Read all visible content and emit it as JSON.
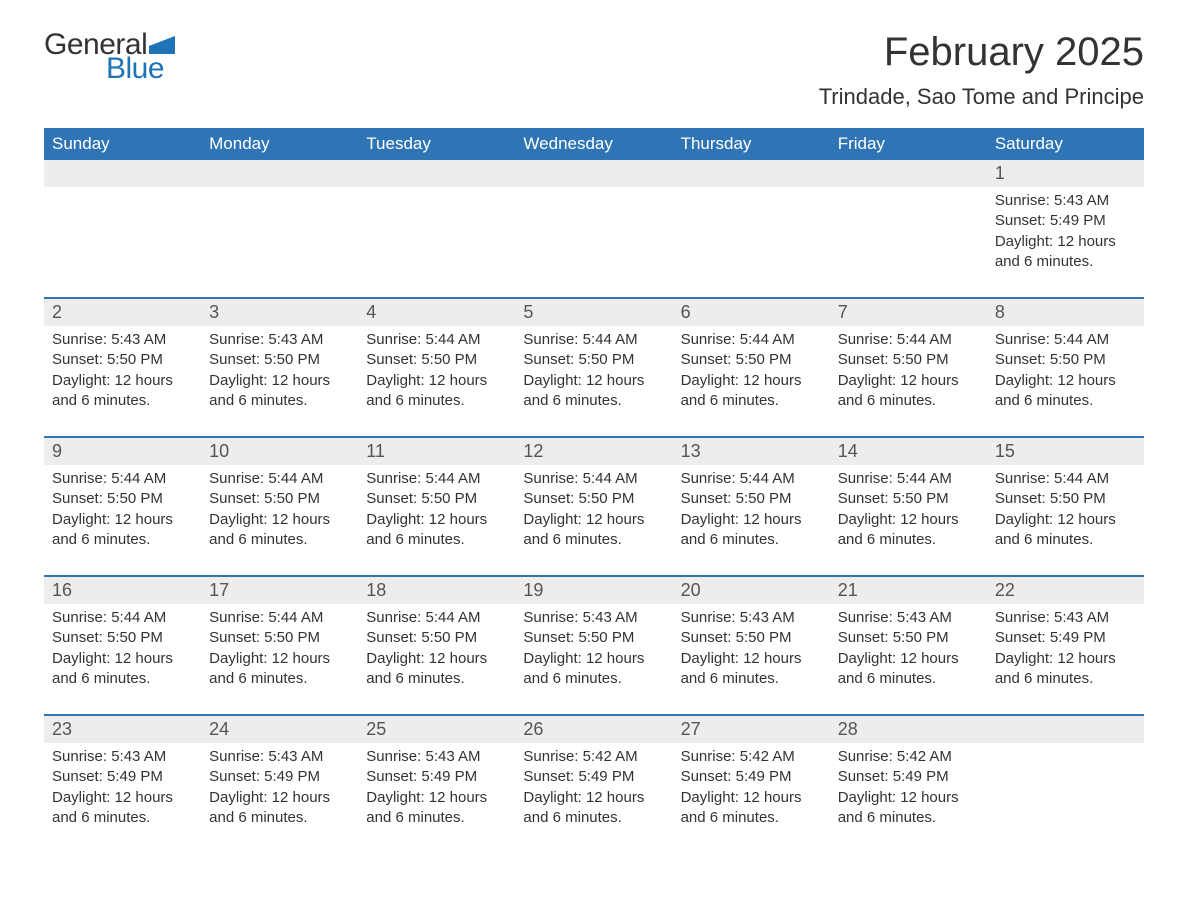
{
  "logo": {
    "text1": "General",
    "text2": "Blue",
    "flag_color": "#1f73b7"
  },
  "title": "February 2025",
  "location": "Trindade, Sao Tome and Principe",
  "colors": {
    "header_bg": "#2f74b5",
    "header_text": "#ffffff",
    "daynum_bg": "#ededed",
    "border": "#2f74b5",
    "body_text": "#333333"
  },
  "day_headers": [
    "Sunday",
    "Monday",
    "Tuesday",
    "Wednesday",
    "Thursday",
    "Friday",
    "Saturday"
  ],
  "weeks": [
    [
      {
        "n": "",
        "sr": "",
        "ss": "",
        "dl": ""
      },
      {
        "n": "",
        "sr": "",
        "ss": "",
        "dl": ""
      },
      {
        "n": "",
        "sr": "",
        "ss": "",
        "dl": ""
      },
      {
        "n": "",
        "sr": "",
        "ss": "",
        "dl": ""
      },
      {
        "n": "",
        "sr": "",
        "ss": "",
        "dl": ""
      },
      {
        "n": "",
        "sr": "",
        "ss": "",
        "dl": ""
      },
      {
        "n": "1",
        "sr": "Sunrise: 5:43 AM",
        "ss": "Sunset: 5:49 PM",
        "dl": "Daylight: 12 hours and 6 minutes."
      }
    ],
    [
      {
        "n": "2",
        "sr": "Sunrise: 5:43 AM",
        "ss": "Sunset: 5:50 PM",
        "dl": "Daylight: 12 hours and 6 minutes."
      },
      {
        "n": "3",
        "sr": "Sunrise: 5:43 AM",
        "ss": "Sunset: 5:50 PM",
        "dl": "Daylight: 12 hours and 6 minutes."
      },
      {
        "n": "4",
        "sr": "Sunrise: 5:44 AM",
        "ss": "Sunset: 5:50 PM",
        "dl": "Daylight: 12 hours and 6 minutes."
      },
      {
        "n": "5",
        "sr": "Sunrise: 5:44 AM",
        "ss": "Sunset: 5:50 PM",
        "dl": "Daylight: 12 hours and 6 minutes."
      },
      {
        "n": "6",
        "sr": "Sunrise: 5:44 AM",
        "ss": "Sunset: 5:50 PM",
        "dl": "Daylight: 12 hours and 6 minutes."
      },
      {
        "n": "7",
        "sr": "Sunrise: 5:44 AM",
        "ss": "Sunset: 5:50 PM",
        "dl": "Daylight: 12 hours and 6 minutes."
      },
      {
        "n": "8",
        "sr": "Sunrise: 5:44 AM",
        "ss": "Sunset: 5:50 PM",
        "dl": "Daylight: 12 hours and 6 minutes."
      }
    ],
    [
      {
        "n": "9",
        "sr": "Sunrise: 5:44 AM",
        "ss": "Sunset: 5:50 PM",
        "dl": "Daylight: 12 hours and 6 minutes."
      },
      {
        "n": "10",
        "sr": "Sunrise: 5:44 AM",
        "ss": "Sunset: 5:50 PM",
        "dl": "Daylight: 12 hours and 6 minutes."
      },
      {
        "n": "11",
        "sr": "Sunrise: 5:44 AM",
        "ss": "Sunset: 5:50 PM",
        "dl": "Daylight: 12 hours and 6 minutes."
      },
      {
        "n": "12",
        "sr": "Sunrise: 5:44 AM",
        "ss": "Sunset: 5:50 PM",
        "dl": "Daylight: 12 hours and 6 minutes."
      },
      {
        "n": "13",
        "sr": "Sunrise: 5:44 AM",
        "ss": "Sunset: 5:50 PM",
        "dl": "Daylight: 12 hours and 6 minutes."
      },
      {
        "n": "14",
        "sr": "Sunrise: 5:44 AM",
        "ss": "Sunset: 5:50 PM",
        "dl": "Daylight: 12 hours and 6 minutes."
      },
      {
        "n": "15",
        "sr": "Sunrise: 5:44 AM",
        "ss": "Sunset: 5:50 PM",
        "dl": "Daylight: 12 hours and 6 minutes."
      }
    ],
    [
      {
        "n": "16",
        "sr": "Sunrise: 5:44 AM",
        "ss": "Sunset: 5:50 PM",
        "dl": "Daylight: 12 hours and 6 minutes."
      },
      {
        "n": "17",
        "sr": "Sunrise: 5:44 AM",
        "ss": "Sunset: 5:50 PM",
        "dl": "Daylight: 12 hours and 6 minutes."
      },
      {
        "n": "18",
        "sr": "Sunrise: 5:44 AM",
        "ss": "Sunset: 5:50 PM",
        "dl": "Daylight: 12 hours and 6 minutes."
      },
      {
        "n": "19",
        "sr": "Sunrise: 5:43 AM",
        "ss": "Sunset: 5:50 PM",
        "dl": "Daylight: 12 hours and 6 minutes."
      },
      {
        "n": "20",
        "sr": "Sunrise: 5:43 AM",
        "ss": "Sunset: 5:50 PM",
        "dl": "Daylight: 12 hours and 6 minutes."
      },
      {
        "n": "21",
        "sr": "Sunrise: 5:43 AM",
        "ss": "Sunset: 5:50 PM",
        "dl": "Daylight: 12 hours and 6 minutes."
      },
      {
        "n": "22",
        "sr": "Sunrise: 5:43 AM",
        "ss": "Sunset: 5:49 PM",
        "dl": "Daylight: 12 hours and 6 minutes."
      }
    ],
    [
      {
        "n": "23",
        "sr": "Sunrise: 5:43 AM",
        "ss": "Sunset: 5:49 PM",
        "dl": "Daylight: 12 hours and 6 minutes."
      },
      {
        "n": "24",
        "sr": "Sunrise: 5:43 AM",
        "ss": "Sunset: 5:49 PM",
        "dl": "Daylight: 12 hours and 6 minutes."
      },
      {
        "n": "25",
        "sr": "Sunrise: 5:43 AM",
        "ss": "Sunset: 5:49 PM",
        "dl": "Daylight: 12 hours and 6 minutes."
      },
      {
        "n": "26",
        "sr": "Sunrise: 5:42 AM",
        "ss": "Sunset: 5:49 PM",
        "dl": "Daylight: 12 hours and 6 minutes."
      },
      {
        "n": "27",
        "sr": "Sunrise: 5:42 AM",
        "ss": "Sunset: 5:49 PM",
        "dl": "Daylight: 12 hours and 6 minutes."
      },
      {
        "n": "28",
        "sr": "Sunrise: 5:42 AM",
        "ss": "Sunset: 5:49 PM",
        "dl": "Daylight: 12 hours and 6 minutes."
      },
      {
        "n": "",
        "sr": "",
        "ss": "",
        "dl": ""
      }
    ]
  ]
}
